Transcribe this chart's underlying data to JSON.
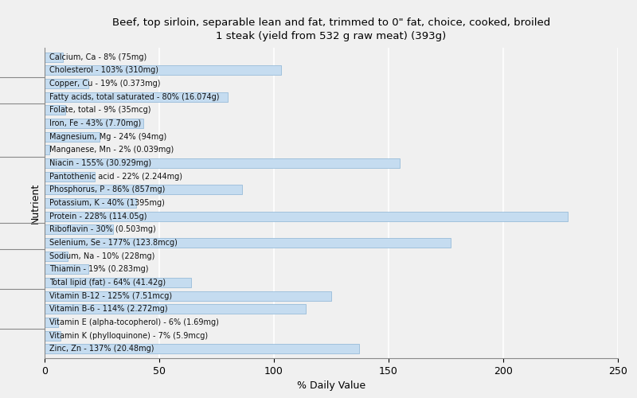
{
  "title": "Beef, top sirloin, separable lean and fat, trimmed to 0\" fat, choice, cooked, broiled\n1 steak (yield from 532 g raw meat) (393g)",
  "xlabel": "% Daily Value",
  "ylabel": "Nutrient",
  "xlim": [
    0,
    250
  ],
  "xticks": [
    0,
    50,
    100,
    150,
    200,
    250
  ],
  "background_color": "#f0f0f0",
  "bar_color": "#c5dcf0",
  "bar_edge_color": "#8ab4d4",
  "nutrients": [
    {
      "label": "Calcium, Ca - 8% (75mg)",
      "value": 8
    },
    {
      "label": "Cholesterol - 103% (310mg)",
      "value": 103
    },
    {
      "label": "Copper, Cu - 19% (0.373mg)",
      "value": 19
    },
    {
      "label": "Fatty acids, total saturated - 80% (16.074g)",
      "value": 80
    },
    {
      "label": "Folate, total - 9% (35mcg)",
      "value": 9
    },
    {
      "label": "Iron, Fe - 43% (7.70mg)",
      "value": 43
    },
    {
      "label": "Magnesium, Mg - 24% (94mg)",
      "value": 24
    },
    {
      "label": "Manganese, Mn - 2% (0.039mg)",
      "value": 2
    },
    {
      "label": "Niacin - 155% (30.929mg)",
      "value": 155
    },
    {
      "label": "Pantothenic acid - 22% (2.244mg)",
      "value": 22
    },
    {
      "label": "Phosphorus, P - 86% (857mg)",
      "value": 86
    },
    {
      "label": "Potassium, K - 40% (1395mg)",
      "value": 40
    },
    {
      "label": "Protein - 228% (114.05g)",
      "value": 228
    },
    {
      "label": "Riboflavin - 30% (0.503mg)",
      "value": 30
    },
    {
      "label": "Selenium, Se - 177% (123.8mcg)",
      "value": 177
    },
    {
      "label": "Sodium, Na - 10% (228mg)",
      "value": 10
    },
    {
      "label": "Thiamin - 19% (0.283mg)",
      "value": 19
    },
    {
      "label": "Total lipid (fat) - 64% (41.42g)",
      "value": 64
    },
    {
      "label": "Vitamin B-12 - 125% (7.51mcg)",
      "value": 125
    },
    {
      "label": "Vitamin B-6 - 114% (2.272mg)",
      "value": 114
    },
    {
      "label": "Vitamin E (alpha-tocopherol) - 6% (1.69mg)",
      "value": 6
    },
    {
      "label": "Vitamin K (phylloquinone) - 7% (5.9mcg)",
      "value": 7
    },
    {
      "label": "Zinc, Zn - 137% (20.48mg)",
      "value": 137
    }
  ],
  "title_fontsize": 9.5,
  "label_fontsize": 7,
  "axis_fontsize": 9
}
